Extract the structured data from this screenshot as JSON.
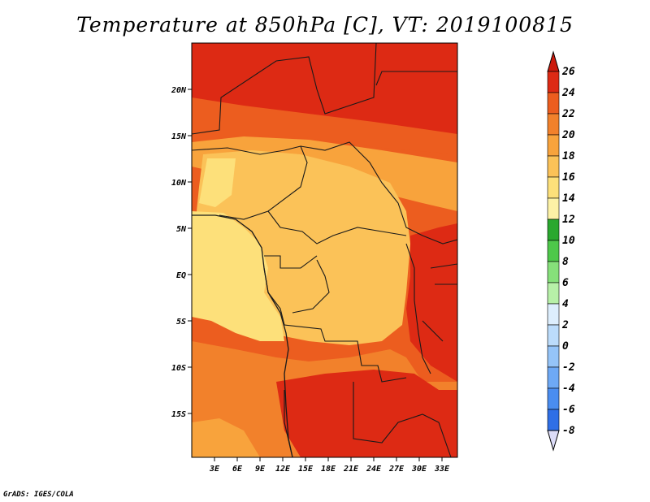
{
  "title": "Temperature at 850hPa [C], VT: 2019100815",
  "credit": "GrADS: IGES/COLA",
  "lat_labels": [
    "20N",
    "15N",
    "10N",
    "5N",
    "EQ",
    "5S",
    "10S",
    "15S"
  ],
  "lon_labels": [
    "3E",
    "6E",
    "9E",
    "12E",
    "15E",
    "18E",
    "21E",
    "24E",
    "27E",
    "30E",
    "33E"
  ],
  "colorbar": {
    "labels": [
      "26",
      "24",
      "22",
      "20",
      "18",
      "16",
      "14",
      "12",
      "10",
      "8",
      "6",
      "4",
      "2",
      "0",
      "-2",
      "-4",
      "-6",
      "-8"
    ],
    "colors": [
      "#0d1a66",
      "#1530a8",
      "#1e4fd0",
      "#2f6fe6",
      "#4a8df0",
      "#6ea9f5",
      "#95c4f8",
      "#bcdcfb",
      "#ddeefd",
      "#b7f0a8",
      "#86e07a",
      "#4ec84a",
      "#2aa82e",
      "#fdf2a6",
      "#fde07a",
      "#fbc258",
      "#f8a33c",
      "#f2812b",
      "#ec5d1f",
      "#dd2a14"
    ],
    "below_color": "#dcdcf8",
    "above_color": "#cc1a0c"
  },
  "colors": {
    "deep_red": "#dd2a14",
    "red_orange": "#ec5d1f",
    "orange": "#f2812b",
    "light_orange": "#f8a33c",
    "gold": "#fbc258",
    "yellow": "#fde07a",
    "border": "#1a1a1a"
  }
}
